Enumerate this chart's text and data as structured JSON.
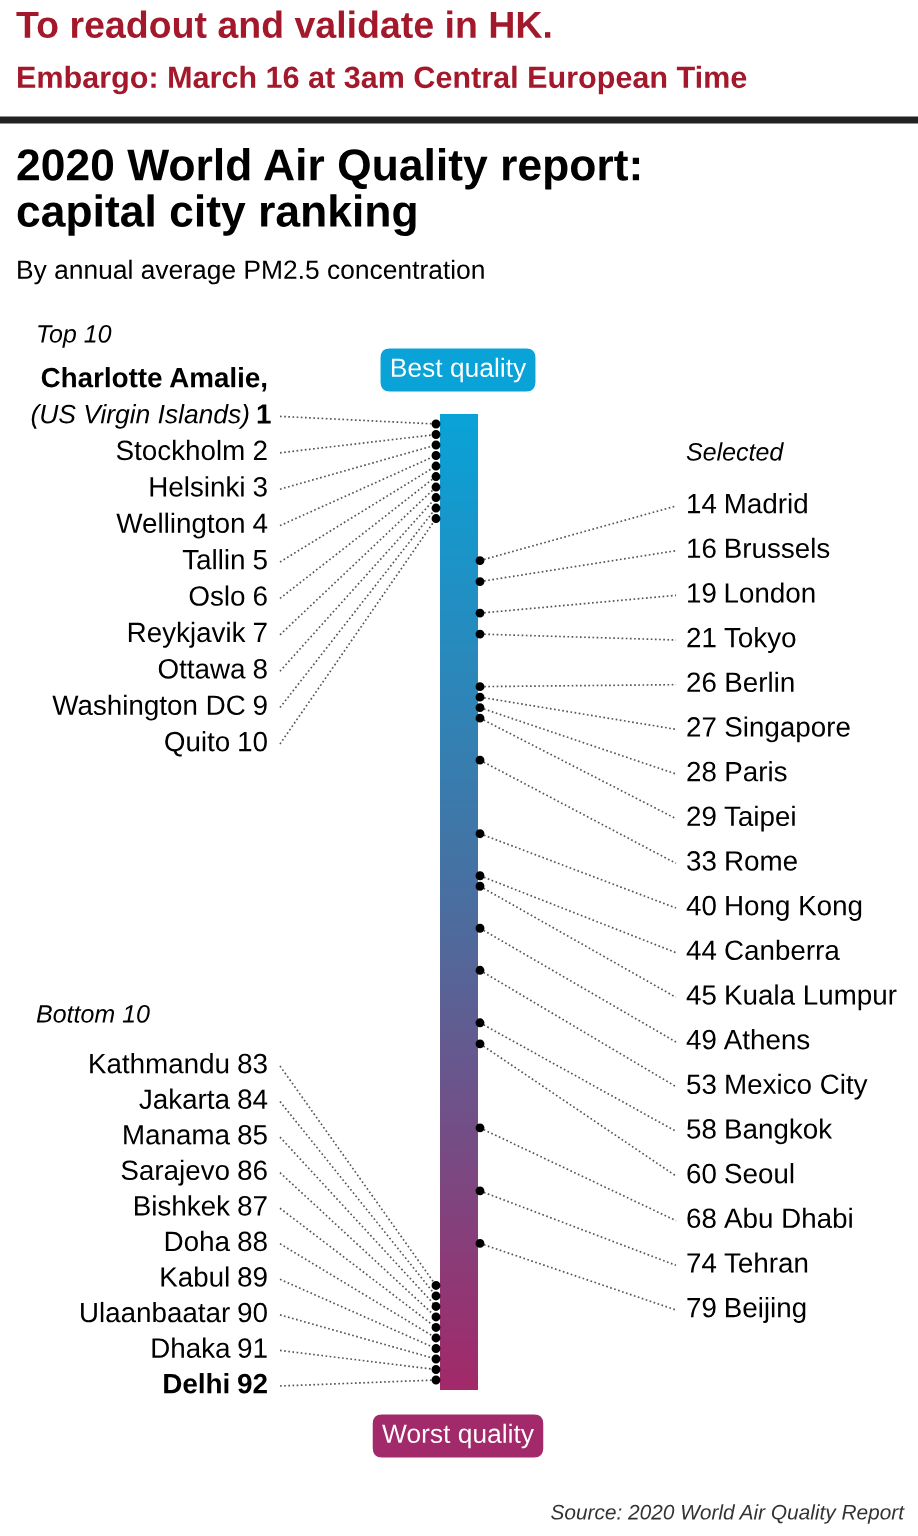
{
  "chart_data": {
    "type": "other",
    "title": "2020 World Air Quality report:\ncapital city ranking",
    "subtitle": "By annual average PM2.5 concentration",
    "annotations": [
      "To readout and validate in HK.",
      "Embargo: March 16 at 3am Central European Time",
      "Best quality",
      "Worst quality",
      "Source: 2020 World Air Quality Report"
    ],
    "data_labels": true,
    "categories": [
      "Charlotte Amalie,\n(US Virgin Islands)",
      "Stockholm",
      "Helsinki",
      "Wellington",
      "Tallin",
      "Oslo",
      "Reykjavik",
      "Ottawa",
      "Washington DC",
      "Quito",
      "Madrid",
      "Brussels",
      "London",
      "Tokyo",
      "Berlin",
      "Singapore",
      "Paris",
      "Taipei",
      "Rome",
      "Hong Kong",
      "Canberra",
      "Kuala Lumpur",
      "Athens",
      "Mexico City",
      "Bangkok",
      "Seoul",
      "Abu Dhabi",
      "Tehran",
      "Beijing",
      "Kathmandu",
      "Jakarta",
      "Manama",
      "Sarajevo",
      "Bishkek",
      "Doha",
      "Kabul",
      "Ulaanbaatar",
      "Dhaka",
      "Delhi"
    ],
    "series": [
      {
        "name": "Top 10",
        "values": [
          1,
          2,
          3,
          4,
          5,
          6,
          7,
          8,
          9,
          10,
          null,
          null,
          null,
          null,
          null,
          null,
          null,
          null,
          null,
          null,
          null,
          null,
          null,
          null,
          null,
          null,
          null,
          null,
          null,
          null,
          null,
          null,
          null,
          null,
          null,
          null,
          null,
          null,
          null
        ]
      },
      {
        "name": "Selected",
        "values": [
          null,
          null,
          null,
          null,
          null,
          null,
          null,
          null,
          null,
          null,
          14,
          16,
          19,
          21,
          26,
          27,
          28,
          29,
          33,
          40,
          44,
          45,
          49,
          53,
          58,
          60,
          68,
          74,
          79,
          null,
          null,
          null,
          null,
          null,
          null,
          null,
          null,
          null,
          null
        ]
      },
      {
        "name": "Bottom 10",
        "values": [
          null,
          null,
          null,
          null,
          null,
          null,
          null,
          null,
          null,
          null,
          null,
          null,
          null,
          null,
          null,
          null,
          null,
          null,
          null,
          null,
          null,
          null,
          null,
          null,
          null,
          null,
          null,
          null,
          null,
          83,
          84,
          85,
          86,
          87,
          88,
          89,
          90,
          91,
          92
        ]
      }
    ]
  }
}
